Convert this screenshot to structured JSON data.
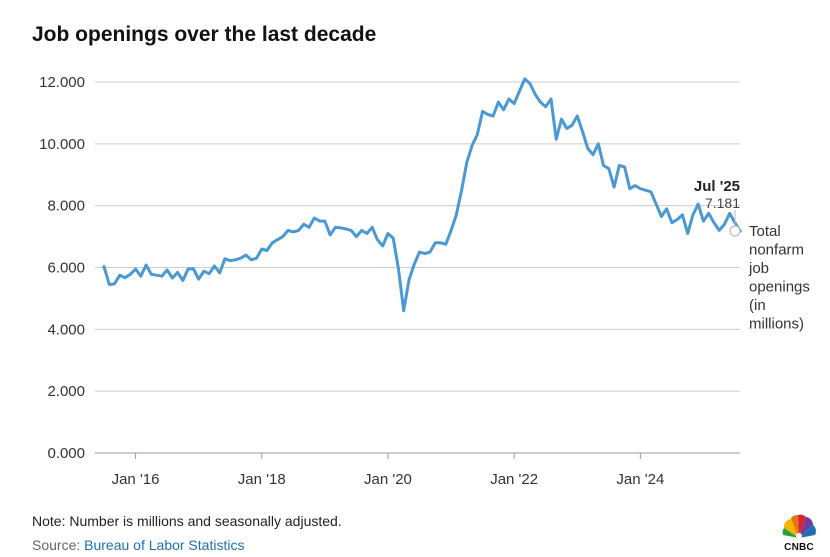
{
  "header": {
    "title": "Job openings over the last decade"
  },
  "footer": {
    "note": "Note: Number is millions and seasonally adjusted.",
    "source_prefix": "Source: ",
    "source_link": "Bureau of Labor Statistics",
    "logo_text": "CNBC",
    "logo_icon": "peacock-icon"
  },
  "colors": {
    "line": "#4a98d4",
    "grid": "#cccccc",
    "text": "#333333",
    "link": "#1f6fb5"
  },
  "chart_data": {
    "type": "line",
    "title": "Job openings over the last decade",
    "xlabel": "",
    "ylabel": "",
    "ylim": [
      0,
      12
    ],
    "y_ticks": [
      0,
      2,
      4,
      6,
      8,
      10,
      12
    ],
    "y_tick_labels": [
      "0.000",
      "2.000",
      "4.000",
      "6.000",
      "8.000",
      "10.000",
      "12.000"
    ],
    "x_ticks": [
      {
        "label": "Jan '16",
        "date": "2016-01"
      },
      {
        "label": "Jan '18",
        "date": "2018-01"
      },
      {
        "label": "Jan '20",
        "date": "2020-01"
      },
      {
        "label": "Jan '22",
        "date": "2022-01"
      },
      {
        "label": "Jan '24",
        "date": "2024-01"
      }
    ],
    "grid": true,
    "legend": "right",
    "series": [
      {
        "name": "Total nonfarm job openings (in millions)",
        "start": "2015-07",
        "end": "2025-07",
        "values": [
          6.03,
          5.45,
          5.47,
          5.75,
          5.67,
          5.78,
          5.95,
          5.72,
          6.08,
          5.78,
          5.75,
          5.72,
          5.92,
          5.66,
          5.84,
          5.58,
          5.95,
          5.96,
          5.62,
          5.88,
          5.8,
          6.05,
          5.83,
          6.28,
          6.22,
          6.25,
          6.3,
          6.4,
          6.25,
          6.3,
          6.6,
          6.55,
          6.8,
          6.9,
          7.0,
          7.2,
          7.15,
          7.2,
          7.4,
          7.3,
          7.6,
          7.5,
          7.5,
          7.05,
          7.3,
          7.28,
          7.25,
          7.2,
          7.0,
          7.2,
          7.1,
          7.3,
          6.9,
          6.7,
          7.1,
          6.95,
          5.95,
          4.6,
          5.6,
          6.1,
          6.5,
          6.45,
          6.5,
          6.8,
          6.8,
          6.75,
          7.2,
          7.7,
          8.5,
          9.4,
          9.95,
          10.3,
          11.05,
          10.95,
          10.9,
          11.35,
          11.1,
          11.45,
          11.3,
          11.7,
          12.1,
          11.95,
          11.6,
          11.35,
          11.2,
          11.45,
          10.15,
          10.8,
          10.5,
          10.6,
          10.9,
          10.4,
          9.85,
          9.65,
          10.0,
          9.3,
          9.2,
          8.6,
          9.3,
          9.25,
          8.55,
          8.65,
          8.55,
          8.5,
          8.45,
          8.05,
          7.65,
          7.9,
          7.45,
          7.55,
          7.7,
          7.1,
          7.7,
          8.05,
          7.5,
          7.75,
          7.45,
          7.2,
          7.4,
          7.75,
          7.438,
          7.181
        ]
      }
    ],
    "annotations": [
      {
        "label": "Jul '25",
        "value_label": "7.181",
        "date": "2025-07",
        "value": 7.181
      }
    ]
  }
}
